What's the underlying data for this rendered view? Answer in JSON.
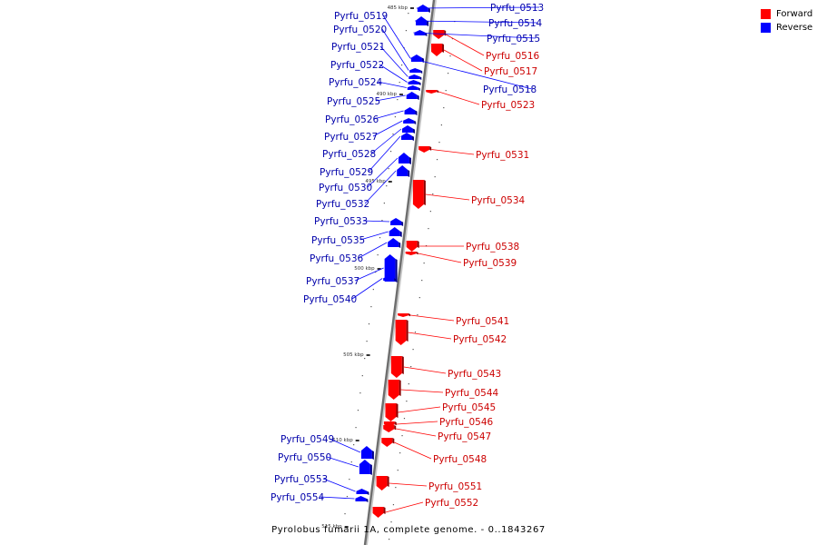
{
  "caption": "Pyrolobus fumarii 1A, complete genome. - 0..1843267",
  "legend": [
    {
      "label": "Forward",
      "color": "#ff0000"
    },
    {
      "label": "Reverse",
      "color": "#0000ff"
    }
  ],
  "strand_colors": {
    "forward": "#ff0000",
    "reverse": "#0000ff"
  },
  "scale_marks": [
    {
      "label": "485 kbp",
      "kbp": 485
    },
    {
      "label": "490 kbp",
      "kbp": 490
    },
    {
      "label": "495 kbp",
      "kbp": 495
    },
    {
      "label": "500 kbp",
      "kbp": 500
    },
    {
      "label": "505 kbp",
      "kbp": 505
    },
    {
      "label": "510 kbp",
      "kbp": 510
    },
    {
      "label": "515 kbp",
      "kbp": 515
    }
  ],
  "genes": [
    {
      "name": "Pyrfu_0513",
      "strand": "reverse"
    },
    {
      "name": "Pyrfu_0514",
      "strand": "reverse"
    },
    {
      "name": "Pyrfu_0515",
      "strand": "reverse"
    },
    {
      "name": "Pyrfu_0516",
      "strand": "forward"
    },
    {
      "name": "Pyrfu_0517",
      "strand": "forward"
    },
    {
      "name": "Pyrfu_0518",
      "strand": "reverse"
    },
    {
      "name": "Pyrfu_0519",
      "strand": "reverse"
    },
    {
      "name": "Pyrfu_0520",
      "strand": "reverse"
    },
    {
      "name": "Pyrfu_0521",
      "strand": "reverse"
    },
    {
      "name": "Pyrfu_0522",
      "strand": "reverse"
    },
    {
      "name": "Pyrfu_0523",
      "strand": "forward"
    },
    {
      "name": "Pyrfu_0524",
      "strand": "reverse"
    },
    {
      "name": "Pyrfu_0525",
      "strand": "reverse"
    },
    {
      "name": "Pyrfu_0526",
      "strand": "reverse"
    },
    {
      "name": "Pyrfu_0527",
      "strand": "reverse"
    },
    {
      "name": "Pyrfu_0528",
      "strand": "reverse"
    },
    {
      "name": "Pyrfu_0529",
      "strand": "reverse"
    },
    {
      "name": "Pyrfu_0530",
      "strand": "reverse"
    },
    {
      "name": "Pyrfu_0531",
      "strand": "forward"
    },
    {
      "name": "Pyrfu_0532",
      "strand": "reverse"
    },
    {
      "name": "Pyrfu_0533",
      "strand": "reverse"
    },
    {
      "name": "Pyrfu_0534",
      "strand": "forward"
    },
    {
      "name": "Pyrfu_0535",
      "strand": "reverse"
    },
    {
      "name": "Pyrfu_0536",
      "strand": "reverse"
    },
    {
      "name": "Pyrfu_0537",
      "strand": "reverse"
    },
    {
      "name": "Pyrfu_0538",
      "strand": "forward"
    },
    {
      "name": "Pyrfu_0539",
      "strand": "forward"
    },
    {
      "name": "Pyrfu_0540",
      "strand": "reverse"
    },
    {
      "name": "Pyrfu_0541",
      "strand": "forward"
    },
    {
      "name": "Pyrfu_0542",
      "strand": "forward"
    },
    {
      "name": "Pyrfu_0543",
      "strand": "forward"
    },
    {
      "name": "Pyrfu_0544",
      "strand": "forward"
    },
    {
      "name": "Pyrfu_0545",
      "strand": "forward"
    },
    {
      "name": "Pyrfu_0546",
      "strand": "forward"
    },
    {
      "name": "Pyrfu_0547",
      "strand": "forward"
    },
    {
      "name": "Pyrfu_0548",
      "strand": "forward"
    },
    {
      "name": "Pyrfu_0549",
      "strand": "reverse"
    },
    {
      "name": "Pyrfu_0550",
      "strand": "reverse"
    },
    {
      "name": "Pyrfu_0551",
      "strand": "forward"
    },
    {
      "name": "Pyrfu_0552",
      "strand": "forward"
    },
    {
      "name": "Pyrfu_0553",
      "strand": "reverse"
    },
    {
      "name": "Pyrfu_0554",
      "strand": "reverse"
    }
  ]
}
